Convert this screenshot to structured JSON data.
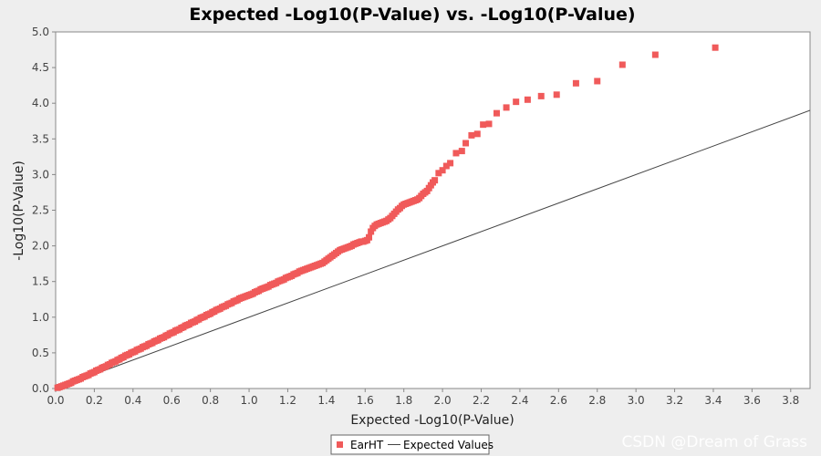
{
  "chart_data": {
    "type": "scatter",
    "title": "Expected -Log10(P-Value) vs. -Log10(P-Value)",
    "xlabel": "Expected -Log10(P-Value)",
    "ylabel": "-Log10(P-Value)",
    "xlim": [
      0,
      3.9
    ],
    "ylim": [
      0,
      5.0
    ],
    "xticks": [
      "0.0",
      "0.2",
      "0.4",
      "0.6",
      "0.8",
      "1.0",
      "1.2",
      "1.4",
      "1.6",
      "1.8",
      "2.0",
      "2.2",
      "2.4",
      "2.6",
      "2.8",
      "3.0",
      "3.2",
      "3.4",
      "3.6",
      "3.8"
    ],
    "yticks": [
      "0.0",
      "0.5",
      "1.0",
      "1.5",
      "2.0",
      "2.5",
      "3.0",
      "3.5",
      "4.0",
      "4.5",
      "5.0"
    ],
    "grid": false,
    "legend_position": "bottom-center",
    "series": [
      {
        "name": "EarHT",
        "kind": "scatter",
        "marker": "square",
        "color": "#f05a5a",
        "points": [
          [
            0.01,
            0.01
          ],
          [
            0.02,
            0.02
          ],
          [
            0.03,
            0.03
          ],
          [
            0.04,
            0.04
          ],
          [
            0.05,
            0.05
          ],
          [
            0.06,
            0.06
          ],
          [
            0.07,
            0.07
          ],
          [
            0.08,
            0.08
          ],
          [
            0.09,
            0.1
          ],
          [
            0.1,
            0.11
          ],
          [
            0.11,
            0.12
          ],
          [
            0.12,
            0.13
          ],
          [
            0.13,
            0.14
          ],
          [
            0.14,
            0.16
          ],
          [
            0.15,
            0.17
          ],
          [
            0.16,
            0.18
          ],
          [
            0.17,
            0.19
          ],
          [
            0.18,
            0.21
          ],
          [
            0.19,
            0.22
          ],
          [
            0.2,
            0.23
          ],
          [
            0.21,
            0.25
          ],
          [
            0.22,
            0.26
          ],
          [
            0.23,
            0.27
          ],
          [
            0.24,
            0.29
          ],
          [
            0.25,
            0.3
          ],
          [
            0.26,
            0.31
          ],
          [
            0.27,
            0.33
          ],
          [
            0.28,
            0.34
          ],
          [
            0.29,
            0.36
          ],
          [
            0.3,
            0.37
          ],
          [
            0.31,
            0.38
          ],
          [
            0.32,
            0.4
          ],
          [
            0.33,
            0.41
          ],
          [
            0.34,
            0.43
          ],
          [
            0.35,
            0.44
          ],
          [
            0.36,
            0.46
          ],
          [
            0.37,
            0.47
          ],
          [
            0.38,
            0.48
          ],
          [
            0.39,
            0.5
          ],
          [
            0.4,
            0.51
          ],
          [
            0.41,
            0.52
          ],
          [
            0.42,
            0.54
          ],
          [
            0.43,
            0.55
          ],
          [
            0.44,
            0.56
          ],
          [
            0.45,
            0.58
          ],
          [
            0.46,
            0.59
          ],
          [
            0.47,
            0.6
          ],
          [
            0.48,
            0.62
          ],
          [
            0.49,
            0.63
          ],
          [
            0.5,
            0.64
          ],
          [
            0.51,
            0.66
          ],
          [
            0.52,
            0.67
          ],
          [
            0.53,
            0.68
          ],
          [
            0.54,
            0.7
          ],
          [
            0.55,
            0.71
          ],
          [
            0.56,
            0.72
          ],
          [
            0.57,
            0.74
          ],
          [
            0.58,
            0.75
          ],
          [
            0.59,
            0.77
          ],
          [
            0.6,
            0.78
          ],
          [
            0.61,
            0.79
          ],
          [
            0.62,
            0.81
          ],
          [
            0.63,
            0.82
          ],
          [
            0.64,
            0.83
          ],
          [
            0.65,
            0.85
          ],
          [
            0.66,
            0.86
          ],
          [
            0.67,
            0.88
          ],
          [
            0.68,
            0.89
          ],
          [
            0.69,
            0.9
          ],
          [
            0.7,
            0.92
          ],
          [
            0.71,
            0.93
          ],
          [
            0.72,
            0.94
          ],
          [
            0.73,
            0.96
          ],
          [
            0.74,
            0.97
          ],
          [
            0.75,
            0.99
          ],
          [
            0.76,
            1.0
          ],
          [
            0.77,
            1.01
          ],
          [
            0.78,
            1.03
          ],
          [
            0.79,
            1.04
          ],
          [
            0.8,
            1.05
          ],
          [
            0.81,
            1.07
          ],
          [
            0.82,
            1.08
          ],
          [
            0.83,
            1.1
          ],
          [
            0.84,
            1.11
          ],
          [
            0.85,
            1.12
          ],
          [
            0.86,
            1.14
          ],
          [
            0.87,
            1.15
          ],
          [
            0.88,
            1.16
          ],
          [
            0.89,
            1.18
          ],
          [
            0.9,
            1.19
          ],
          [
            0.91,
            1.2
          ],
          [
            0.92,
            1.22
          ],
          [
            0.93,
            1.23
          ],
          [
            0.94,
            1.24
          ],
          [
            0.95,
            1.26
          ],
          [
            0.96,
            1.27
          ],
          [
            0.97,
            1.28
          ],
          [
            0.98,
            1.29
          ],
          [
            0.99,
            1.3
          ],
          [
            1.0,
            1.31
          ],
          [
            1.01,
            1.32
          ],
          [
            1.02,
            1.33
          ],
          [
            1.03,
            1.35
          ],
          [
            1.04,
            1.36
          ],
          [
            1.05,
            1.37
          ],
          [
            1.06,
            1.39
          ],
          [
            1.07,
            1.4
          ],
          [
            1.08,
            1.41
          ],
          [
            1.09,
            1.42
          ],
          [
            1.1,
            1.43
          ],
          [
            1.11,
            1.45
          ],
          [
            1.12,
            1.46
          ],
          [
            1.13,
            1.47
          ],
          [
            1.14,
            1.48
          ],
          [
            1.15,
            1.5
          ],
          [
            1.16,
            1.51
          ],
          [
            1.17,
            1.52
          ],
          [
            1.18,
            1.53
          ],
          [
            1.19,
            1.55
          ],
          [
            1.2,
            1.56
          ],
          [
            1.21,
            1.57
          ],
          [
            1.22,
            1.58
          ],
          [
            1.23,
            1.6
          ],
          [
            1.24,
            1.61
          ],
          [
            1.25,
            1.62
          ],
          [
            1.26,
            1.64
          ],
          [
            1.27,
            1.65
          ],
          [
            1.28,
            1.66
          ],
          [
            1.29,
            1.67
          ],
          [
            1.3,
            1.68
          ],
          [
            1.31,
            1.69
          ],
          [
            1.32,
            1.7
          ],
          [
            1.33,
            1.71
          ],
          [
            1.34,
            1.72
          ],
          [
            1.35,
            1.73
          ],
          [
            1.36,
            1.74
          ],
          [
            1.37,
            1.75
          ],
          [
            1.38,
            1.76
          ],
          [
            1.39,
            1.78
          ],
          [
            1.4,
            1.8
          ],
          [
            1.41,
            1.82
          ],
          [
            1.42,
            1.84
          ],
          [
            1.43,
            1.86
          ],
          [
            1.44,
            1.88
          ],
          [
            1.45,
            1.9
          ],
          [
            1.46,
            1.92
          ],
          [
            1.47,
            1.94
          ],
          [
            1.48,
            1.95
          ],
          [
            1.49,
            1.96
          ],
          [
            1.5,
            1.97
          ],
          [
            1.51,
            1.98
          ],
          [
            1.52,
            1.99
          ],
          [
            1.53,
            2.0
          ],
          [
            1.54,
            2.02
          ],
          [
            1.55,
            2.03
          ],
          [
            1.56,
            2.04
          ],
          [
            1.57,
            2.05
          ],
          [
            1.58,
            2.06
          ],
          [
            1.59,
            2.06
          ],
          [
            1.6,
            2.07
          ],
          [
            1.61,
            2.08
          ],
          [
            1.62,
            2.12
          ],
          [
            1.63,
            2.2
          ],
          [
            1.64,
            2.25
          ],
          [
            1.65,
            2.28
          ],
          [
            1.66,
            2.3
          ],
          [
            1.67,
            2.31
          ],
          [
            1.68,
            2.32
          ],
          [
            1.69,
            2.33
          ],
          [
            1.7,
            2.34
          ],
          [
            1.71,
            2.35
          ],
          [
            1.72,
            2.37
          ],
          [
            1.73,
            2.39
          ],
          [
            1.74,
            2.42
          ],
          [
            1.75,
            2.45
          ],
          [
            1.76,
            2.48
          ],
          [
            1.77,
            2.51
          ],
          [
            1.78,
            2.53
          ],
          [
            1.79,
            2.56
          ],
          [
            1.8,
            2.58
          ],
          [
            1.81,
            2.59
          ],
          [
            1.82,
            2.6
          ],
          [
            1.83,
            2.61
          ],
          [
            1.84,
            2.62
          ],
          [
            1.85,
            2.63
          ],
          [
            1.86,
            2.64
          ],
          [
            1.87,
            2.65
          ],
          [
            1.88,
            2.67
          ],
          [
            1.89,
            2.7
          ],
          [
            1.9,
            2.73
          ],
          [
            1.91,
            2.75
          ],
          [
            1.92,
            2.77
          ],
          [
            1.93,
            2.81
          ],
          [
            1.94,
            2.85
          ],
          [
            1.95,
            2.89
          ],
          [
            1.96,
            2.92
          ],
          [
            1.98,
            3.02
          ],
          [
            2.0,
            3.06
          ],
          [
            2.02,
            3.12
          ],
          [
            2.04,
            3.16
          ],
          [
            2.07,
            3.3
          ],
          [
            2.1,
            3.33
          ],
          [
            2.12,
            3.44
          ],
          [
            2.15,
            3.55
          ],
          [
            2.18,
            3.57
          ],
          [
            2.21,
            3.7
          ],
          [
            2.24,
            3.71
          ],
          [
            2.28,
            3.86
          ],
          [
            2.33,
            3.94
          ],
          [
            2.38,
            4.02
          ],
          [
            2.44,
            4.05
          ],
          [
            2.51,
            4.1
          ],
          [
            2.59,
            4.12
          ],
          [
            2.69,
            4.28
          ],
          [
            2.8,
            4.31
          ],
          [
            2.93,
            4.54
          ],
          [
            3.1,
            4.68
          ],
          [
            3.41,
            4.78
          ]
        ]
      },
      {
        "name": "Expected Values",
        "kind": "line",
        "color": "#444444",
        "x": [
          0,
          3.9
        ],
        "y": [
          0,
          3.9
        ]
      }
    ]
  },
  "watermark": "CSDN @Dream of Grass"
}
